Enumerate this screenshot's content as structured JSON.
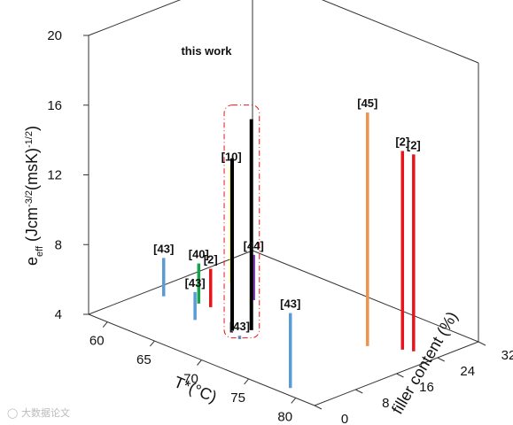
{
  "chart_data": {
    "type": "3d-bar",
    "title": "",
    "xlabel": "T*(°C)",
    "ylabel": "filler content (%)",
    "zlabel_base": "e",
    "zlabel_sub": "eff",
    "zlabel_rest": " (Jcm",
    "zlabel_sup1": "-3/2",
    "zlabel_mid": "(msK)",
    "zlabel_sup2": "-1/2",
    "zlabel_end": ")",
    "xlim": [
      58,
      82
    ],
    "ylim": [
      0,
      32
    ],
    "zlim": [
      4,
      20
    ],
    "x_ticks": [
      "60",
      "65",
      "70",
      "75",
      "80"
    ],
    "y_ticks": [
      "0",
      "8",
      "16",
      "24",
      "32"
    ],
    "z_ticks": [
      "4",
      "8",
      "12",
      "16",
      "20"
    ],
    "highlight_label": "this work",
    "bars": [
      {
        "label": "[10]",
        "T": 61.2,
        "filler": 22,
        "value": 10.7,
        "color": "#f2f200"
      },
      {
        "label": "[43]",
        "T": 59.5,
        "filler": 11.9,
        "value": 6.2,
        "color": "#5b9bd5"
      },
      {
        "label": "[40]",
        "T": 62.3,
        "filler": 13.6,
        "value": 6.3,
        "color": "#19a349"
      },
      {
        "label": "[2]",
        "T": 63.4,
        "filler": 13.9,
        "value": 6.2,
        "color": "#e8141b"
      },
      {
        "label": "[44]",
        "T": 64.7,
        "filler": 19.9,
        "value": 6.6,
        "color": "#7b3fb2"
      },
      {
        "label": "[43]",
        "T": 64.3,
        "filler": 9.2,
        "value": 5.6,
        "color": "#5b9bd5"
      },
      {
        "label": "",
        "T": 67.7,
        "filler": 10.2,
        "value": 13.9,
        "color": "#000000"
      },
      {
        "label": "",
        "T": 68.6,
        "filler": 12.3,
        "value": 16.1,
        "color": "#000000"
      },
      {
        "label": "[43]",
        "T": 69.2,
        "filler": 8.9,
        "value": 4.2,
        "color": "#5b9bd5"
      },
      {
        "label": "[43]",
        "T": 78.4,
        "filler": 1.9,
        "value": 8.3,
        "color": "#5b9bd5"
      },
      {
        "label": "[45]",
        "T": 76.8,
        "filler": 19.9,
        "value": 17.4,
        "color": "#f0924a"
      },
      {
        "label": "[2]",
        "T": 79.1,
        "filler": 22.5,
        "value": 15.4,
        "color": "#e8141b"
      },
      {
        "label": "[2]",
        "T": 79.9,
        "filler": 23.2,
        "value": 15.3,
        "color": "#e8141b"
      }
    ]
  },
  "watermark": "大数据论文"
}
